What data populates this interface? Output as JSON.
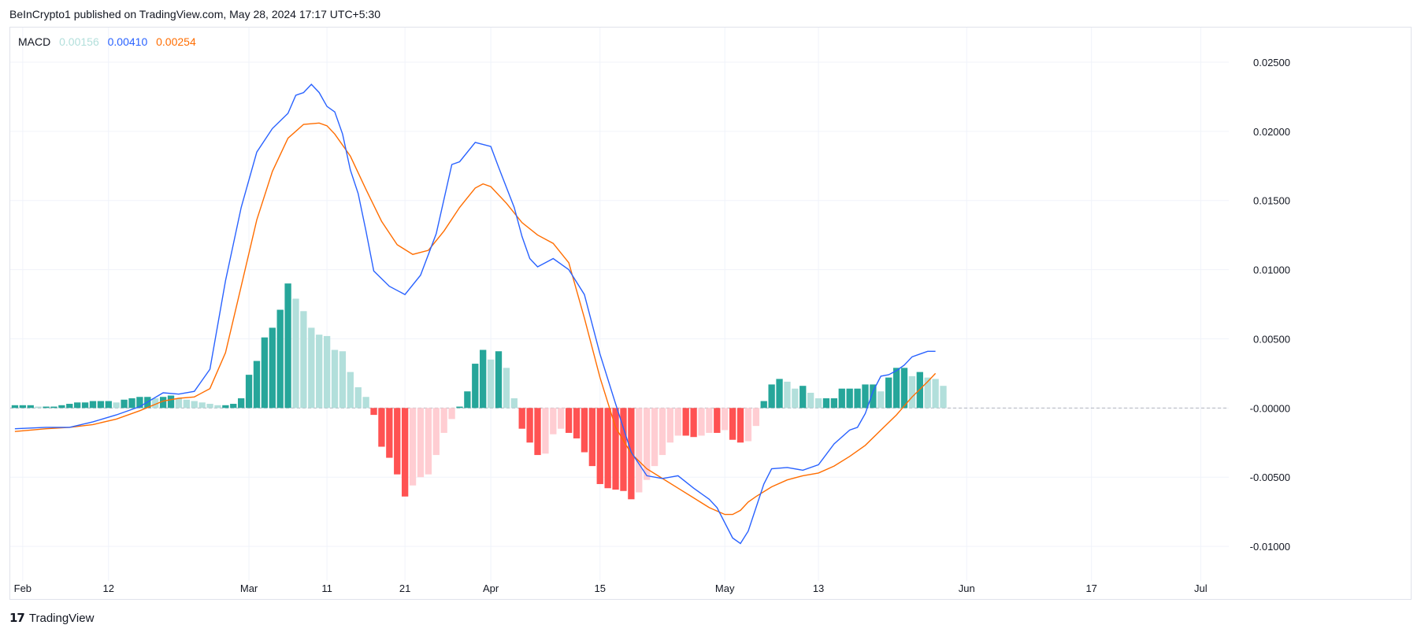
{
  "header": {
    "published_text": "BeInCrypto1 published on TradingView.com, May 28, 2024 17:17 UTC+5:30"
  },
  "legend": {
    "indicator": "MACD",
    "histogram_value": "0.00156",
    "macd_value": "0.00410",
    "signal_value": "0.00254"
  },
  "footer": {
    "brand": "TradingView",
    "logo_glyph": "17"
  },
  "colors": {
    "macd_line": "#2962ff",
    "signal_line": "#ff6d00",
    "hist_pos_strong": "#26a69a",
    "hist_pos_weak": "#b2dfdb",
    "hist_neg_strong": "#ff5252",
    "hist_neg_weak": "#ffcdd2",
    "grid": "#f0f3fa",
    "zero_line": "#b2b5be"
  },
  "chart_data": {
    "type": "line",
    "title": "",
    "indicator": "MACD",
    "x_tick_labels": [
      "Feb",
      "12",
      "Mar",
      "11",
      "21",
      "Apr",
      "15",
      "May",
      "13",
      "Jun",
      "17",
      "Jul"
    ],
    "x_tick_days": [
      0,
      11,
      29,
      39,
      49,
      60,
      74,
      90,
      102,
      121,
      137,
      151
    ],
    "y_tick_labels": [
      "0.02500",
      "0.02000",
      "0.01500",
      "0.01000",
      "0.00500",
      "-0.00000",
      "-0.00500",
      "-0.01000"
    ],
    "y_ticks": [
      0.025,
      0.02,
      0.015,
      0.01,
      0.005,
      0,
      -0.005,
      -0.01
    ],
    "ylim": [
      -0.0125,
      0.0275
    ],
    "xlim_days": [
      -1.6,
      154.6
    ],
    "grid": true,
    "legend_position": "top-left",
    "series": [
      {
        "key": "macd",
        "x_day": [
          -1,
          3,
          6,
          9,
          12,
          15,
          18,
          20,
          22,
          24,
          26,
          28,
          30,
          32,
          34,
          35,
          36,
          37,
          38,
          39,
          40,
          41,
          42,
          43,
          44,
          45,
          47,
          49,
          51,
          53,
          55,
          56,
          58,
          60,
          61,
          63,
          64,
          65,
          66,
          67,
          68,
          70,
          72,
          74,
          76,
          78,
          80,
          82,
          84,
          86,
          88,
          89,
          91,
          92,
          93,
          94,
          95,
          96,
          98,
          100,
          102,
          104,
          106,
          107,
          108,
          109,
          110,
          111,
          112,
          113,
          114,
          115,
          116,
          117
        ],
        "y": [
          -0.0015,
          -0.0014,
          -0.0014,
          -0.001,
          -0.0005,
          0.0001,
          0.0011,
          0.001,
          0.0012,
          0.0028,
          0.0092,
          0.0145,
          0.0185,
          0.0202,
          0.0213,
          0.0226,
          0.0228,
          0.0234,
          0.0228,
          0.0218,
          0.0214,
          0.0198,
          0.0172,
          0.0155,
          0.0128,
          0.0099,
          0.0088,
          0.0082,
          0.0096,
          0.0126,
          0.0176,
          0.0178,
          0.0192,
          0.0189,
          0.0174,
          0.0145,
          0.0124,
          0.0108,
          0.0102,
          0.0105,
          0.0108,
          0.01,
          0.0082,
          0.0039,
          0.0003,
          -0.0032,
          -0.0049,
          -0.0051,
          -0.0049,
          -0.0058,
          -0.0066,
          -0.0072,
          -0.0094,
          -0.0098,
          -0.0089,
          -0.0072,
          -0.0055,
          -0.0044,
          -0.0043,
          -0.0045,
          -0.0041,
          -0.0026,
          -0.0016,
          -0.0014,
          -0.0004,
          0.0012,
          0.0023,
          0.0024,
          0.0027,
          0.0031,
          0.0037,
          0.0039,
          0.0041,
          0.0041
        ]
      },
      {
        "key": "signal",
        "x_day": [
          -1,
          3,
          6,
          9,
          12,
          15,
          18,
          20,
          22,
          24,
          26,
          28,
          30,
          32,
          34,
          36,
          38,
          39,
          40,
          42,
          44,
          46,
          48,
          50,
          52,
          54,
          56,
          58,
          59,
          60,
          62,
          64,
          66,
          68,
          70,
          72,
          74,
          76,
          78,
          80,
          82,
          84,
          86,
          88,
          90,
          91,
          92,
          93,
          94,
          96,
          98,
          100,
          102,
          104,
          106,
          108,
          110,
          112,
          114,
          116,
          117
        ],
        "y": [
          -0.0017,
          -0.0015,
          -0.0014,
          -0.0012,
          -0.0008,
          -0.0002,
          0.0005,
          0.0007,
          0.0008,
          0.0014,
          0.004,
          0.0088,
          0.0136,
          0.0171,
          0.0195,
          0.0205,
          0.0206,
          0.0204,
          0.0198,
          0.0182,
          0.0158,
          0.0135,
          0.0118,
          0.0111,
          0.0114,
          0.0128,
          0.0145,
          0.0159,
          0.0162,
          0.016,
          0.0148,
          0.0134,
          0.0125,
          0.0119,
          0.0105,
          0.0065,
          0.0022,
          -0.0014,
          -0.0033,
          -0.0044,
          -0.0051,
          -0.0058,
          -0.0065,
          -0.0072,
          -0.0077,
          -0.0077,
          -0.0074,
          -0.0068,
          -0.0064,
          -0.0057,
          -0.0052,
          -0.0049,
          -0.0047,
          -0.0042,
          -0.0035,
          -0.0027,
          -0.0016,
          -0.0005,
          0.0008,
          0.0019,
          0.0025
        ]
      }
    ],
    "histogram": {
      "start_day": -1,
      "values": [
        0.0002,
        0.0002,
        0.0002,
        0.0001,
        0.0001,
        0.0001,
        0.0002,
        0.0003,
        0.0004,
        0.0004,
        0.0005,
        0.0005,
        0.0005,
        0.0004,
        0.0006,
        0.0007,
        0.0008,
        0.0008,
        0.0007,
        0.0008,
        0.0009,
        0.0007,
        0.0006,
        0.0005,
        0.0004,
        0.0003,
        0.0002,
        0.0002,
        0.0003,
        0.0007,
        0.0024,
        0.0034,
        0.0051,
        0.0058,
        0.0071,
        0.009,
        0.0079,
        0.007,
        0.0058,
        0.0053,
        0.0052,
        0.0042,
        0.0041,
        0.0026,
        0.0015,
        0.0008,
        -0.0005,
        -0.0028,
        -0.0036,
        -0.0048,
        -0.0064,
        -0.0056,
        -0.005,
        -0.0048,
        -0.0034,
        -0.0018,
        -0.0008,
        0.0001,
        0.0012,
        0.0032,
        0.0042,
        0.0035,
        0.0041,
        0.0029,
        0.0007,
        -0.0015,
        -0.0025,
        -0.0034,
        -0.0033,
        -0.0019,
        -0.0015,
        -0.0018,
        -0.0022,
        -0.0032,
        -0.0042,
        -0.0055,
        -0.0058,
        -0.0059,
        -0.006,
        -0.0066,
        -0.0061,
        -0.0052,
        -0.0042,
        -0.0034,
        -0.0025,
        -0.002,
        -0.002,
        -0.0021,
        -0.002,
        -0.0018,
        -0.0018,
        -0.0016,
        -0.0023,
        -0.0025,
        -0.0024,
        -0.0013,
        0.0005,
        0.0017,
        0.0021,
        0.0019,
        0.0014,
        0.0016,
        0.0011,
        0.0007,
        0.0007,
        0.0007,
        0.0014,
        0.0014,
        0.0014,
        0.0017,
        0.0017,
        0.0012,
        0.0022,
        0.0029,
        0.0029,
        0.0023,
        0.0026,
        0.0022,
        0.0021,
        0.0016
      ]
    }
  }
}
